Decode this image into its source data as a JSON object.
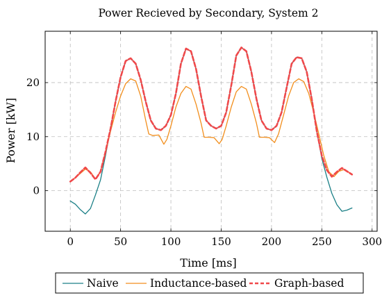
{
  "chart_data": {
    "type": "line",
    "title": "Power Recieved by Secondary, System 2",
    "xlabel": "Time [ms]",
    "ylabel": "Power [kW]",
    "xlim": [
      -25,
      305
    ],
    "ylim": [
      -7.5,
      29.5
    ],
    "xticks": [
      0,
      50,
      100,
      150,
      200,
      250,
      300
    ],
    "yticks": [
      0,
      10,
      20
    ],
    "grid": true,
    "grid_style": "dashed",
    "legend_position": "bottom-outside",
    "series": [
      {
        "name": "Naive",
        "color": "#1a7f86",
        "style": "solid",
        "points": [
          [
            0,
            -1.9
          ],
          [
            5,
            -2.5
          ],
          [
            10,
            -3.5
          ],
          [
            15,
            -4.3
          ],
          [
            20,
            -3.3
          ],
          [
            25,
            -0.8
          ],
          [
            30,
            2.0
          ],
          [
            35,
            6.5
          ],
          [
            40,
            11.5
          ],
          [
            45,
            16.5
          ],
          [
            50,
            21.0
          ],
          [
            55,
            24.0
          ],
          [
            60,
            24.5
          ],
          [
            65,
            23.5
          ],
          [
            70,
            20.5
          ],
          [
            75,
            16.5
          ],
          [
            80,
            13.0
          ],
          [
            85,
            11.5
          ],
          [
            90,
            11.2
          ],
          [
            95,
            12.0
          ],
          [
            100,
            14.0
          ],
          [
            105,
            18.0
          ],
          [
            110,
            23.5
          ],
          [
            115,
            26.3
          ],
          [
            120,
            25.8
          ],
          [
            125,
            22.5
          ],
          [
            130,
            17.5
          ],
          [
            135,
            13.0
          ],
          [
            140,
            12.0
          ],
          [
            145,
            11.5
          ],
          [
            150,
            12.0
          ],
          [
            155,
            14.5
          ],
          [
            160,
            19.5
          ],
          [
            165,
            25.0
          ],
          [
            170,
            26.5
          ],
          [
            175,
            25.8
          ],
          [
            180,
            22.0
          ],
          [
            185,
            17.0
          ],
          [
            190,
            13.0
          ],
          [
            195,
            11.5
          ],
          [
            200,
            11.2
          ],
          [
            205,
            12.0
          ],
          [
            210,
            14.5
          ],
          [
            215,
            19.0
          ],
          [
            220,
            23.5
          ],
          [
            225,
            24.7
          ],
          [
            230,
            24.5
          ],
          [
            235,
            22.0
          ],
          [
            240,
            17.0
          ],
          [
            245,
            11.0
          ],
          [
            250,
            6.0
          ],
          [
            255,
            2.5
          ],
          [
            260,
            -0.5
          ],
          [
            265,
            -2.6
          ],
          [
            270,
            -3.8
          ],
          [
            275,
            -3.6
          ],
          [
            280,
            -3.2
          ]
        ]
      },
      {
        "name": "Inductance-based",
        "color": "#f28e1c",
        "style": "solid",
        "points": [
          [
            0,
            1.7
          ],
          [
            5,
            2.4
          ],
          [
            10,
            3.2
          ],
          [
            15,
            4.0
          ],
          [
            20,
            3.5
          ],
          [
            25,
            2.2
          ],
          [
            30,
            3.5
          ],
          [
            35,
            7.0
          ],
          [
            40,
            11.0
          ],
          [
            45,
            14.5
          ],
          [
            50,
            17.5
          ],
          [
            55,
            19.8
          ],
          [
            60,
            20.7
          ],
          [
            65,
            20.3
          ],
          [
            70,
            17.5
          ],
          [
            75,
            13.0
          ],
          [
            78,
            10.5
          ],
          [
            82,
            10.2
          ],
          [
            88,
            10.3
          ],
          [
            93,
            8.6
          ],
          [
            96,
            9.5
          ],
          [
            100,
            12.0
          ],
          [
            105,
            15.5
          ],
          [
            110,
            18.0
          ],
          [
            115,
            19.3
          ],
          [
            120,
            18.8
          ],
          [
            125,
            16.0
          ],
          [
            130,
            12.5
          ],
          [
            133,
            9.9
          ],
          [
            138,
            9.9
          ],
          [
            143,
            9.8
          ],
          [
            148,
            8.7
          ],
          [
            151,
            9.5
          ],
          [
            155,
            12.0
          ],
          [
            160,
            15.5
          ],
          [
            165,
            18.3
          ],
          [
            170,
            19.3
          ],
          [
            175,
            18.8
          ],
          [
            180,
            16.0
          ],
          [
            185,
            12.5
          ],
          [
            188,
            9.9
          ],
          [
            193,
            9.9
          ],
          [
            198,
            9.8
          ],
          [
            203,
            8.9
          ],
          [
            207,
            10.5
          ],
          [
            212,
            14.0
          ],
          [
            217,
            17.5
          ],
          [
            222,
            20.0
          ],
          [
            227,
            20.7
          ],
          [
            232,
            20.2
          ],
          [
            237,
            18.0
          ],
          [
            242,
            14.5
          ],
          [
            247,
            10.5
          ],
          [
            252,
            6.5
          ],
          [
            257,
            3.5
          ],
          [
            262,
            2.6
          ],
          [
            267,
            3.6
          ],
          [
            272,
            3.9
          ],
          [
            277,
            3.4
          ],
          [
            280,
            3.1
          ]
        ]
      },
      {
        "name": "Graph-based",
        "color": "#f0484a",
        "style": "dashed",
        "points": [
          [
            0,
            1.7
          ],
          [
            5,
            2.4
          ],
          [
            10,
            3.4
          ],
          [
            15,
            4.3
          ],
          [
            20,
            3.3
          ],
          [
            25,
            2.1
          ],
          [
            30,
            3.5
          ],
          [
            35,
            7.2
          ],
          [
            40,
            11.5
          ],
          [
            45,
            16.5
          ],
          [
            50,
            21.0
          ],
          [
            55,
            24.0
          ],
          [
            60,
            24.5
          ],
          [
            65,
            23.5
          ],
          [
            70,
            20.5
          ],
          [
            75,
            16.5
          ],
          [
            80,
            13.0
          ],
          [
            85,
            11.5
          ],
          [
            90,
            11.2
          ],
          [
            95,
            12.0
          ],
          [
            100,
            14.0
          ],
          [
            105,
            18.0
          ],
          [
            110,
            23.5
          ],
          [
            115,
            26.3
          ],
          [
            120,
            25.8
          ],
          [
            125,
            22.5
          ],
          [
            130,
            17.5
          ],
          [
            135,
            13.0
          ],
          [
            140,
            12.0
          ],
          [
            145,
            11.5
          ],
          [
            150,
            12.0
          ],
          [
            155,
            14.5
          ],
          [
            160,
            19.5
          ],
          [
            165,
            25.0
          ],
          [
            170,
            26.5
          ],
          [
            175,
            25.8
          ],
          [
            180,
            22.0
          ],
          [
            185,
            17.0
          ],
          [
            190,
            13.0
          ],
          [
            195,
            11.5
          ],
          [
            200,
            11.2
          ],
          [
            205,
            12.0
          ],
          [
            210,
            14.5
          ],
          [
            215,
            19.0
          ],
          [
            220,
            23.5
          ],
          [
            225,
            24.7
          ],
          [
            230,
            24.5
          ],
          [
            235,
            22.0
          ],
          [
            240,
            17.0
          ],
          [
            245,
            11.0
          ],
          [
            250,
            6.5
          ],
          [
            255,
            3.8
          ],
          [
            260,
            2.6
          ],
          [
            265,
            3.5
          ],
          [
            270,
            4.2
          ],
          [
            275,
            3.6
          ],
          [
            280,
            3.0
          ]
        ]
      }
    ]
  }
}
